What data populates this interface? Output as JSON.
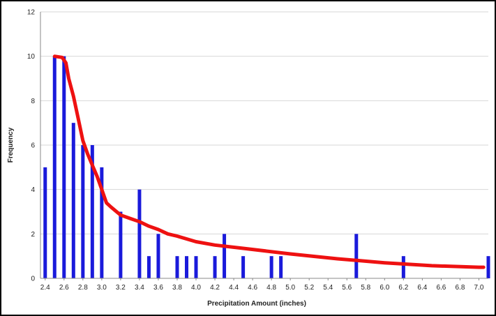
{
  "chart_data": {
    "type": "bar",
    "title": "",
    "xlabel": "Precipitation Amount (inches)",
    "ylabel": "Frequency",
    "ylim": [
      0,
      12
    ],
    "yticks": [
      0,
      2,
      4,
      6,
      8,
      10,
      12
    ],
    "xlim": [
      2.35,
      7.1
    ],
    "xtick_labels": [
      "2.4",
      "2.6",
      "2.8",
      "3.0",
      "3.2",
      "3.4",
      "3.6",
      "3.8",
      "4.0",
      "4.2",
      "4.4",
      "4.6",
      "4.8",
      "5.0",
      "5.2",
      "5.4",
      "5.6",
      "5.8",
      "6.0",
      "6.2",
      "6.4",
      "6.6",
      "6.8",
      "7.0"
    ],
    "grid": true,
    "series": [
      {
        "type": "bar",
        "color": "#1a1adb",
        "x": [
          2.4,
          2.5,
          2.6,
          2.7,
          2.8,
          2.9,
          3.0,
          3.2,
          3.4,
          3.5,
          3.6,
          3.8,
          3.9,
          4.0,
          4.2,
          4.3,
          4.5,
          4.8,
          4.9,
          5.7,
          6.2,
          7.1
        ],
        "values": [
          5,
          10,
          10,
          7,
          6,
          6,
          5,
          3,
          4,
          1,
          2,
          1,
          1,
          1,
          1,
          2,
          1,
          1,
          1,
          2,
          1,
          1
        ]
      },
      {
        "type": "line",
        "color": "#ee1111",
        "x": [
          2.5,
          2.58,
          2.62,
          2.65,
          2.7,
          2.75,
          2.8,
          2.85,
          2.9,
          2.95,
          3.0,
          3.05,
          3.1,
          3.2,
          3.3,
          3.4,
          3.5,
          3.6,
          3.7,
          3.8,
          4.0,
          4.2,
          4.5,
          5.0,
          5.5,
          6.0,
          6.5,
          7.0,
          7.05
        ],
        "values": [
          10.0,
          9.95,
          9.7,
          9.0,
          8.2,
          7.2,
          6.2,
          5.6,
          5.1,
          4.6,
          4.0,
          3.4,
          3.2,
          2.85,
          2.7,
          2.55,
          2.35,
          2.2,
          2.0,
          1.9,
          1.65,
          1.5,
          1.35,
          1.1,
          0.88,
          0.7,
          0.57,
          0.5,
          0.5
        ]
      }
    ]
  }
}
